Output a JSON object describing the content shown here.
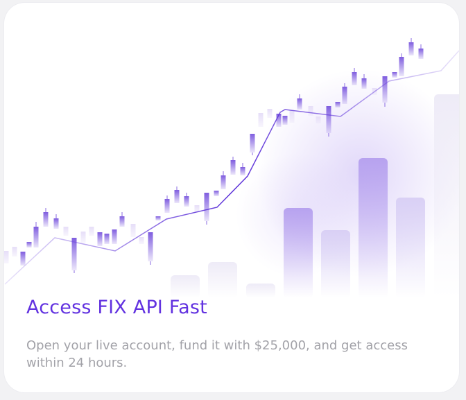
{
  "card": {
    "title": "Access FIX API Fast",
    "description": "Open your live account, fund it with $25,000, and get access within 24 hours.",
    "accent_color": "#6232e0",
    "text_muted_color": "#a2a2a8",
    "illustration": "candlestick-chart-with-trend-line-and-bars"
  }
}
